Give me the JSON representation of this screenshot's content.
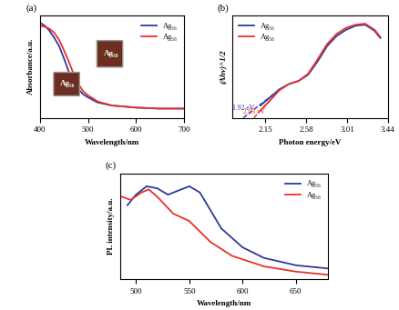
{
  "chart_data": [
    {
      "type": "line",
      "title": "(a)",
      "x_label": "Wavelength/nm",
      "y_label": "Absorbance/a.u.",
      "xlim": [
        400,
        700
      ],
      "xticks": [
        400,
        500,
        600,
        700
      ],
      "ylim": [
        0,
        1
      ],
      "yticks": [],
      "tick_labels": "x",
      "legend": "upper right",
      "annotations": [
        "Ag₅₈",
        "Ag₅₆"
      ],
      "series": [
        {
          "name": "Ag₅₆",
          "color": "#2e3a9c",
          "line_style": "solid",
          "x": [
            400,
            410,
            420,
            430,
            440,
            450,
            460,
            470,
            480,
            490,
            500,
            520,
            550,
            600,
            650,
            700
          ],
          "values": [
            0.93,
            0.9,
            0.85,
            0.78,
            0.7,
            0.58,
            0.45,
            0.35,
            0.28,
            0.23,
            0.2,
            0.15,
            0.12,
            0.1,
            0.09,
            0.09
          ]
        },
        {
          "name": "Ag₅₈",
          "color": "#e8312a",
          "line_style": "solid",
          "x": [
            400,
            410,
            420,
            430,
            440,
            450,
            460,
            470,
            480,
            490,
            500,
            520,
            550,
            600,
            650,
            700
          ],
          "values": [
            0.9,
            0.89,
            0.87,
            0.83,
            0.76,
            0.66,
            0.55,
            0.43,
            0.33,
            0.26,
            0.22,
            0.16,
            0.12,
            0.1,
            0.09,
            0.09
          ]
        }
      ]
    },
    {
      "type": "line",
      "title": "(b)",
      "x_label": "Photon energy/eV",
      "y_label": "(Ahν)^1/2",
      "xlim": [
        1.8,
        3.44
      ],
      "xticks": [
        2.15,
        2.58,
        3.01,
        3.44
      ],
      "ylim": [
        0,
        1
      ],
      "yticks": [],
      "tick_labels": "x",
      "legend": "upper left",
      "annotations": [
        "1.92 eV",
        "2.03 eV"
      ],
      "series": [
        {
          "name": "Ag₅₆",
          "color": "#2e3a9c",
          "line_style": "solid",
          "x": [
            2.1,
            2.2,
            2.3,
            2.4,
            2.5,
            2.6,
            2.7,
            2.8,
            2.9,
            3.0,
            3.1,
            3.2,
            3.3,
            3.36
          ],
          "values": [
            0.12,
            0.2,
            0.28,
            0.33,
            0.36,
            0.42,
            0.55,
            0.7,
            0.8,
            0.86,
            0.9,
            0.91,
            0.85,
            0.78
          ]
        },
        {
          "name": "Ag₅₈",
          "color": "#e8312a",
          "line_style": "solid",
          "x": [
            2.1,
            2.2,
            2.3,
            2.4,
            2.5,
            2.6,
            2.7,
            2.8,
            2.9,
            3.0,
            3.1,
            3.2,
            3.3,
            3.36
          ],
          "values": [
            0.07,
            0.17,
            0.27,
            0.33,
            0.36,
            0.43,
            0.57,
            0.72,
            0.82,
            0.88,
            0.91,
            0.92,
            0.86,
            0.79
          ]
        },
        {
          "color": "#2e3a9c",
          "line_style": "dashed",
          "x": [
            1.92,
            2.25
          ],
          "values": [
            0,
            0.24
          ]
        },
        {
          "color": "#e8312a",
          "line_style": "dashed",
          "x": [
            2.03,
            2.25
          ],
          "values": [
            0,
            0.22
          ]
        }
      ]
    },
    {
      "type": "line",
      "title": "(c)",
      "x_label": "Wavelength/nm",
      "y_label": "PL intensity/a.u.",
      "xlim": [
        485,
        680
      ],
      "xticks": [
        500,
        550,
        600,
        650
      ],
      "ylim": [
        0,
        1
      ],
      "yticks": [],
      "tick_labels": "x",
      "legend": "upper right",
      "series": [
        {
          "name": "Ag₅₆",
          "color": "#2e3a9c",
          "line_style": "solid",
          "x": [
            492,
            500,
            510,
            520,
            530,
            540,
            550,
            560,
            570,
            580,
            600,
            620,
            650,
            680
          ],
          "values": [
            0.7,
            0.8,
            0.88,
            0.86,
            0.8,
            0.84,
            0.88,
            0.82,
            0.65,
            0.48,
            0.3,
            0.2,
            0.13,
            0.1
          ]
        },
        {
          "name": "Ag₅₈",
          "color": "#e8312a",
          "line_style": "solid",
          "x": [
            487,
            495,
            505,
            512,
            520,
            535,
            550,
            560,
            570,
            590,
            620,
            650,
            680
          ],
          "values": [
            0.78,
            0.75,
            0.82,
            0.85,
            0.78,
            0.62,
            0.55,
            0.45,
            0.35,
            0.22,
            0.12,
            0.07,
            0.04
          ]
        }
      ]
    }
  ]
}
